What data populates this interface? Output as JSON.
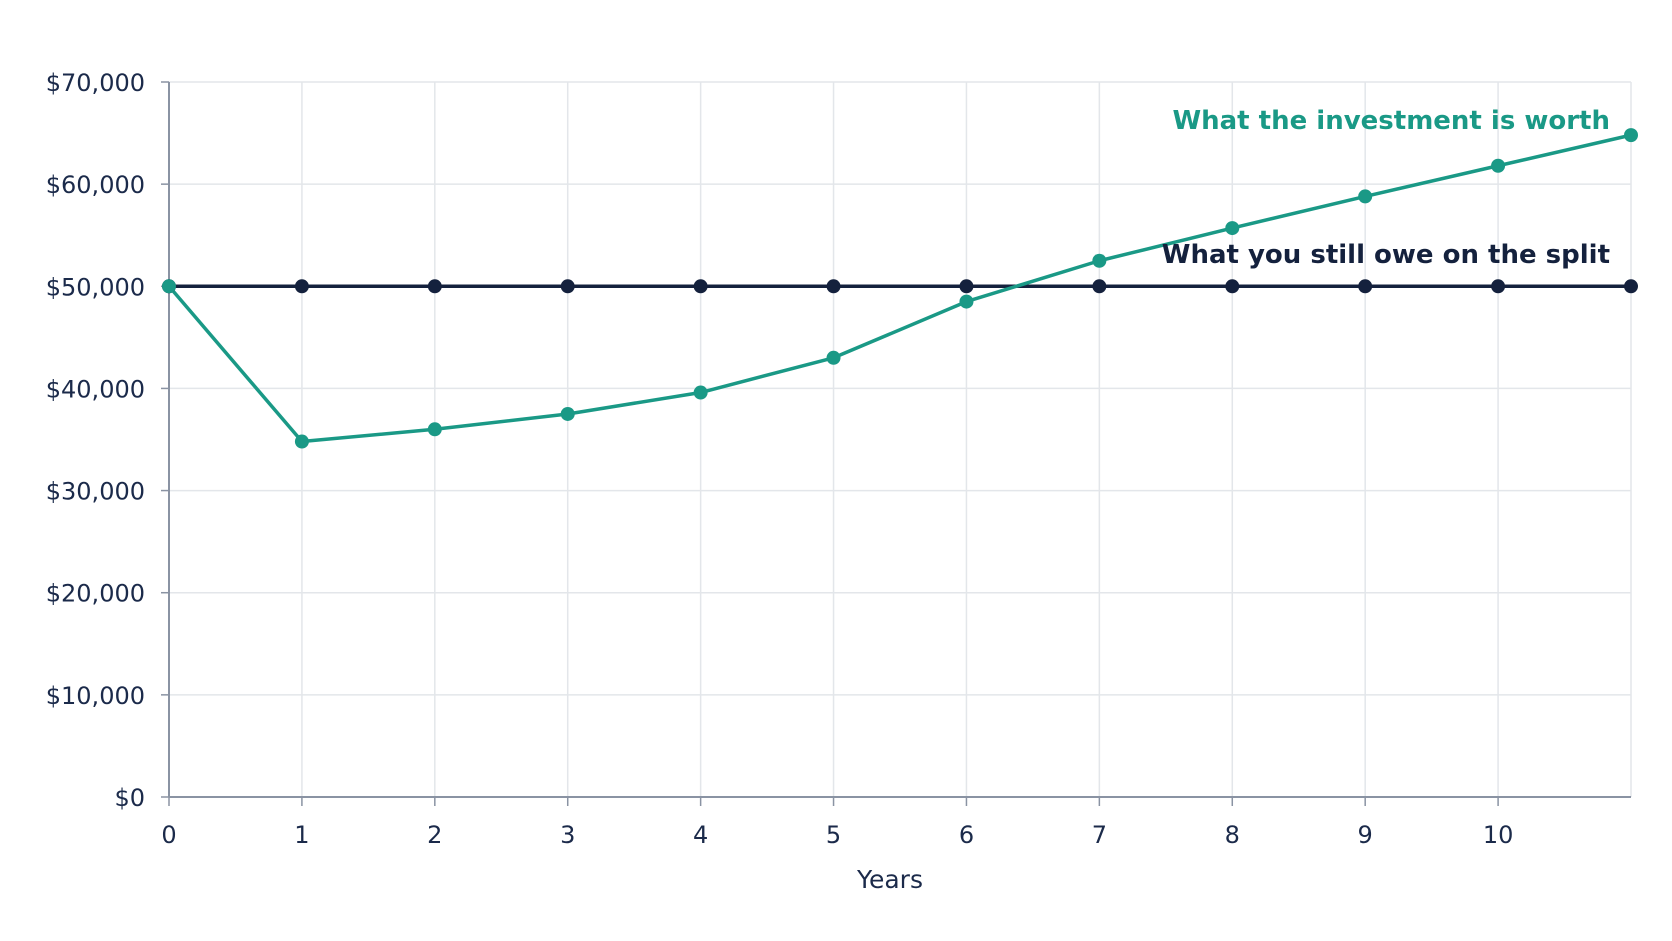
{
  "chart_data": {
    "type": "line",
    "title": "",
    "xlabel": "Years",
    "ylabel": "",
    "x": [
      0,
      1,
      2,
      3,
      4,
      5,
      6,
      7,
      8,
      9,
      10,
      11
    ],
    "x_tick_labels": [
      "0",
      "1",
      "2",
      "3",
      "4",
      "5",
      "6",
      "7",
      "8",
      "9",
      "10"
    ],
    "y_tick_values": [
      0,
      10000,
      20000,
      30000,
      40000,
      50000,
      60000,
      70000
    ],
    "y_tick_labels": [
      "$0",
      "$10,000",
      "$20,000",
      "$30,000",
      "$40,000",
      "$50,000",
      "$60,000",
      "$70,000"
    ],
    "xlim": [
      0,
      11
    ],
    "ylim": [
      0,
      70000
    ],
    "grid": true,
    "legend": "direct labels near line ends",
    "series": [
      {
        "name": "What the investment is worth",
        "color": "#1a9986",
        "values": [
          50000,
          34800,
          36000,
          37500,
          39600,
          43000,
          48500,
          52500,
          55700,
          58800,
          61800,
          64800
        ]
      },
      {
        "name": "What you still owe on the split",
        "color": "#14213d",
        "values": [
          50000,
          50000,
          50000,
          50000,
          50000,
          50000,
          50000,
          50000,
          50000,
          50000,
          50000,
          50000
        ]
      }
    ]
  }
}
